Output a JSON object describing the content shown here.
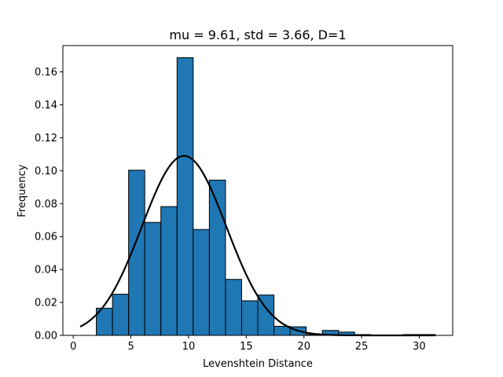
{
  "chart_data": {
    "type": "bar",
    "title": "mu = 9.61,  std = 3.66,  D=1",
    "xlabel": "Levenshtein Distance",
    "ylabel": "Frequency",
    "xlim": [
      -0.9,
      32.9
    ],
    "ylim": [
      0,
      0.176
    ],
    "xticks": [
      0,
      5,
      10,
      15,
      20,
      25,
      30
    ],
    "xtick_labels": [
      "0",
      "5",
      "10",
      "15",
      "20",
      "25",
      "30"
    ],
    "yticks": [
      0.0,
      0.02,
      0.04,
      0.06,
      0.08,
      0.1,
      0.12,
      0.14,
      0.16
    ],
    "ytick_labels": [
      "0.00",
      "0.02",
      "0.04",
      "0.06",
      "0.08",
      "0.10",
      "0.12",
      "0.14",
      "0.16"
    ],
    "grid": false,
    "bar_color": "#1f77b4",
    "bar_edge_color": "#000000",
    "series": [
      {
        "type": "histogram",
        "bin_edges": [
          2.0,
          3.4,
          4.8,
          6.2,
          7.6,
          9.0,
          10.4,
          11.8,
          13.2,
          14.6,
          16.0,
          17.4,
          18.8,
          20.2,
          21.6,
          23.0,
          24.4,
          25.8,
          27.2,
          28.6,
          30.0,
          31.4
        ],
        "values": [
          0.0165,
          0.025,
          0.1003,
          0.0686,
          0.0782,
          0.1686,
          0.0643,
          0.0943,
          0.034,
          0.021,
          0.0245,
          0.0055,
          0.0052,
          0.0005,
          0.003,
          0.002,
          0.0005,
          0.0002,
          0.0002,
          0.0005,
          0.0005
        ]
      },
      {
        "type": "line",
        "curve": "normal-pdf",
        "mu": 9.61,
        "std": 3.66,
        "x_range": [
          0.6,
          31.4
        ],
        "color": "#000000"
      }
    ]
  }
}
